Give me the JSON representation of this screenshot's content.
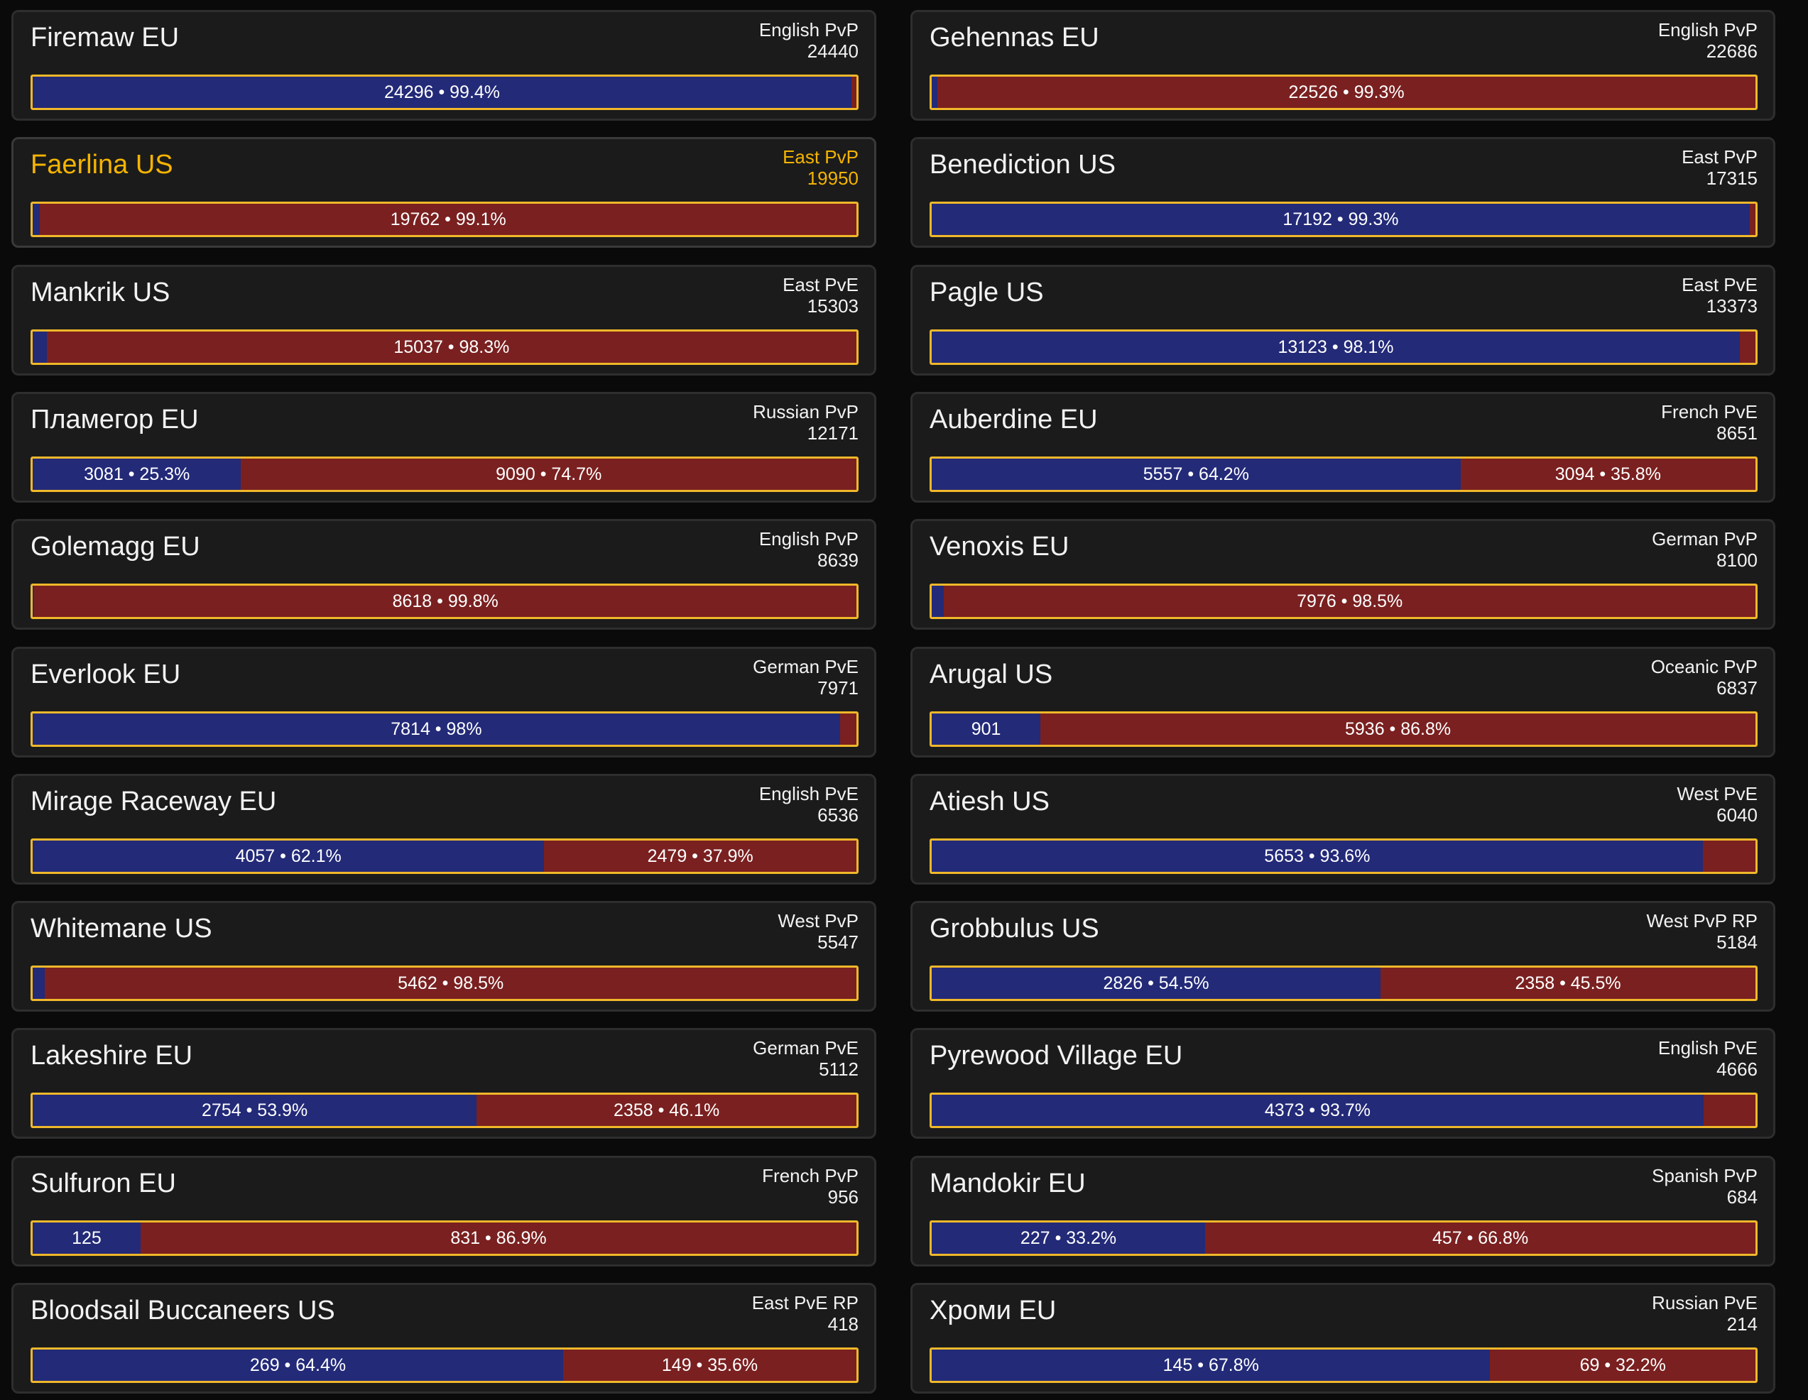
{
  "colors": {
    "alliance": "#232a78",
    "horde": "#7a2020",
    "bar_border": "#f0b82a",
    "highlight_text": "#f5b400",
    "card_bg": "#1b1b1b",
    "page_bg": "#0a0a0a"
  },
  "realms": [
    {
      "name": "Firemaw EU",
      "type": "English PvP",
      "total": "24440",
      "blue_fraction": 0.994,
      "blue_label": "24296 • 99.4%",
      "red_label": "",
      "highlight": false
    },
    {
      "name": "Gehennas EU",
      "type": "English PvP",
      "total": "22686",
      "blue_fraction": 0.007,
      "blue_label": "",
      "red_label": "22526 • 99.3%",
      "highlight": false
    },
    {
      "name": "Faerlina US",
      "type": "East PvP",
      "total": "19950",
      "blue_fraction": 0.009,
      "blue_label": "",
      "red_label": "19762 • 99.1%",
      "highlight": true
    },
    {
      "name": "Benediction US",
      "type": "East PvP",
      "total": "17315",
      "blue_fraction": 0.993,
      "blue_label": "17192 • 99.3%",
      "red_label": "",
      "highlight": false
    },
    {
      "name": "Mankrik US",
      "type": "East PvE",
      "total": "15303",
      "blue_fraction": 0.017,
      "blue_label": "",
      "red_label": "15037 • 98.3%",
      "highlight": false
    },
    {
      "name": "Pagle US",
      "type": "East PvE",
      "total": "13373",
      "blue_fraction": 0.981,
      "blue_label": "13123 • 98.1%",
      "red_label": "",
      "highlight": false
    },
    {
      "name": "Пламегор EU",
      "type": "Russian PvP",
      "total": "12171",
      "blue_fraction": 0.253,
      "blue_label": "3081 • 25.3%",
      "red_label": "9090 • 74.7%",
      "highlight": false
    },
    {
      "name": "Auberdine EU",
      "type": "French PvE",
      "total": "8651",
      "blue_fraction": 0.642,
      "blue_label": "5557 • 64.2%",
      "red_label": "3094 • 35.8%",
      "highlight": false
    },
    {
      "name": "Golemagg EU",
      "type": "English PvP",
      "total": "8639",
      "blue_fraction": 0.002,
      "blue_label": "",
      "red_label": "8618 • 99.8%",
      "highlight": false
    },
    {
      "name": "Venoxis EU",
      "type": "German PvP",
      "total": "8100",
      "blue_fraction": 0.015,
      "blue_label": "",
      "red_label": "7976 • 98.5%",
      "highlight": false
    },
    {
      "name": "Everlook EU",
      "type": "German PvE",
      "total": "7971",
      "blue_fraction": 0.98,
      "blue_label": "7814 • 98%",
      "red_label": "",
      "highlight": false
    },
    {
      "name": "Arugal US",
      "type": "Oceanic PvP",
      "total": "6837",
      "blue_fraction": 0.132,
      "blue_label": "901",
      "red_label": "5936 • 86.8%",
      "highlight": false
    },
    {
      "name": "Mirage Raceway EU",
      "type": "English PvE",
      "total": "6536",
      "blue_fraction": 0.621,
      "blue_label": "4057 • 62.1%",
      "red_label": "2479 • 37.9%",
      "highlight": false
    },
    {
      "name": "Atiesh US",
      "type": "West PvE",
      "total": "6040",
      "blue_fraction": 0.936,
      "blue_label": "5653 • 93.6%",
      "red_label": "",
      "highlight": false
    },
    {
      "name": "Whitemane US",
      "type": "West PvP",
      "total": "5547",
      "blue_fraction": 0.015,
      "blue_label": "",
      "red_label": "5462 • 98.5%",
      "highlight": false
    },
    {
      "name": "Grobbulus US",
      "type": "West PvP RP",
      "total": "5184",
      "blue_fraction": 0.545,
      "blue_label": "2826 • 54.5%",
      "red_label": "2358 • 45.5%",
      "highlight": false
    },
    {
      "name": "Lakeshire EU",
      "type": "German PvE",
      "total": "5112",
      "blue_fraction": 0.539,
      "blue_label": "2754 • 53.9%",
      "red_label": "2358 • 46.1%",
      "highlight": false
    },
    {
      "name": "Pyrewood Village EU",
      "type": "English PvE",
      "total": "4666",
      "blue_fraction": 0.937,
      "blue_label": "4373 • 93.7%",
      "red_label": "",
      "highlight": false
    },
    {
      "name": "Sulfuron EU",
      "type": "French PvP",
      "total": "956",
      "blue_fraction": 0.131,
      "blue_label": "125",
      "red_label": "831 • 86.9%",
      "highlight": false
    },
    {
      "name": "Mandokir EU",
      "type": "Spanish PvP",
      "total": "684",
      "blue_fraction": 0.332,
      "blue_label": "227 • 33.2%",
      "red_label": "457 • 66.8%",
      "highlight": false
    },
    {
      "name": "Bloodsail Buccaneers US",
      "type": "East PvE RP",
      "total": "418",
      "blue_fraction": 0.644,
      "blue_label": "269 • 64.4%",
      "red_label": "149 • 35.6%",
      "highlight": false
    },
    {
      "name": "Хроми EU",
      "type": "Russian PvE",
      "total": "214",
      "blue_fraction": 0.678,
      "blue_label": "145 • 67.8%",
      "red_label": "69 • 32.2%",
      "highlight": false
    }
  ]
}
